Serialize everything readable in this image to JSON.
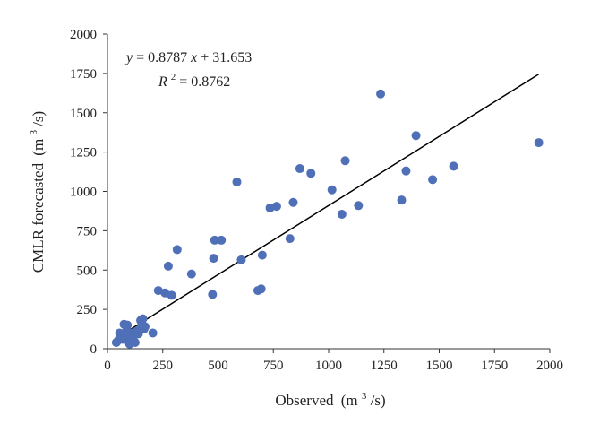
{
  "chart_data": {
    "type": "scatter",
    "xlabel": "Observed",
    "xlabel_unit": "(m",
    "xlabel_unit_exp": "3",
    "xlabel_unit_tail": "/s)",
    "ylabel": "CMLR forecasted",
    "ylabel_unit": "(m",
    "ylabel_unit_exp": "3",
    "ylabel_unit_tail": "/s)",
    "xlim": [
      0,
      2000
    ],
    "ylim": [
      0,
      2000
    ],
    "x_ticks": [
      "0",
      "250",
      "500",
      "750",
      "1000",
      "1250",
      "1500",
      "1750",
      "2000"
    ],
    "y_ticks": [
      "0",
      "250",
      "500",
      "750",
      "1000",
      "1250",
      "1500",
      "1750",
      "2000"
    ],
    "grid": false,
    "marker_color": "#4f6fb7",
    "line_color": "#000000",
    "fit_line": {
      "slope": 0.8787,
      "intercept": 31.653,
      "x_range": [
        40,
        1950
      ]
    },
    "annotation": {
      "equation_y": "y",
      "equation_eq": " = 0.8787",
      "equation_x": "x",
      "equation_rest": " + 31.653",
      "r2_label": "R",
      "r2_exp": "2",
      "r2_value": " = 0.8762"
    },
    "points": [
      {
        "x": 40,
        "y": 40
      },
      {
        "x": 50,
        "y": 55
      },
      {
        "x": 55,
        "y": 100
      },
      {
        "x": 60,
        "y": 70
      },
      {
        "x": 65,
        "y": 85
      },
      {
        "x": 70,
        "y": 60
      },
      {
        "x": 75,
        "y": 155
      },
      {
        "x": 80,
        "y": 95
      },
      {
        "x": 85,
        "y": 110
      },
      {
        "x": 90,
        "y": 150
      },
      {
        "x": 95,
        "y": 50
      },
      {
        "x": 100,
        "y": 30
      },
      {
        "x": 105,
        "y": 80
      },
      {
        "x": 110,
        "y": 100
      },
      {
        "x": 115,
        "y": 65
      },
      {
        "x": 120,
        "y": 85
      },
      {
        "x": 125,
        "y": 40
      },
      {
        "x": 130,
        "y": 110
      },
      {
        "x": 140,
        "y": 95
      },
      {
        "x": 145,
        "y": 120
      },
      {
        "x": 150,
        "y": 180
      },
      {
        "x": 155,
        "y": 150
      },
      {
        "x": 160,
        "y": 190
      },
      {
        "x": 165,
        "y": 125
      },
      {
        "x": 170,
        "y": 140
      },
      {
        "x": 205,
        "y": 100
      },
      {
        "x": 230,
        "y": 370
      },
      {
        "x": 260,
        "y": 355
      },
      {
        "x": 275,
        "y": 525
      },
      {
        "x": 290,
        "y": 340
      },
      {
        "x": 315,
        "y": 630
      },
      {
        "x": 380,
        "y": 475
      },
      {
        "x": 475,
        "y": 345
      },
      {
        "x": 480,
        "y": 575
      },
      {
        "x": 485,
        "y": 690
      },
      {
        "x": 515,
        "y": 690
      },
      {
        "x": 585,
        "y": 1060
      },
      {
        "x": 605,
        "y": 565
      },
      {
        "x": 680,
        "y": 370
      },
      {
        "x": 695,
        "y": 380
      },
      {
        "x": 700,
        "y": 595
      },
      {
        "x": 735,
        "y": 895
      },
      {
        "x": 765,
        "y": 905
      },
      {
        "x": 825,
        "y": 700
      },
      {
        "x": 840,
        "y": 930
      },
      {
        "x": 870,
        "y": 1145
      },
      {
        "x": 920,
        "y": 1115
      },
      {
        "x": 1015,
        "y": 1010
      },
      {
        "x": 1060,
        "y": 855
      },
      {
        "x": 1075,
        "y": 1195
      },
      {
        "x": 1135,
        "y": 910
      },
      {
        "x": 1235,
        "y": 1620
      },
      {
        "x": 1330,
        "y": 945
      },
      {
        "x": 1350,
        "y": 1130
      },
      {
        "x": 1395,
        "y": 1355
      },
      {
        "x": 1470,
        "y": 1075
      },
      {
        "x": 1565,
        "y": 1160
      },
      {
        "x": 1950,
        "y": 1310
      }
    ]
  }
}
